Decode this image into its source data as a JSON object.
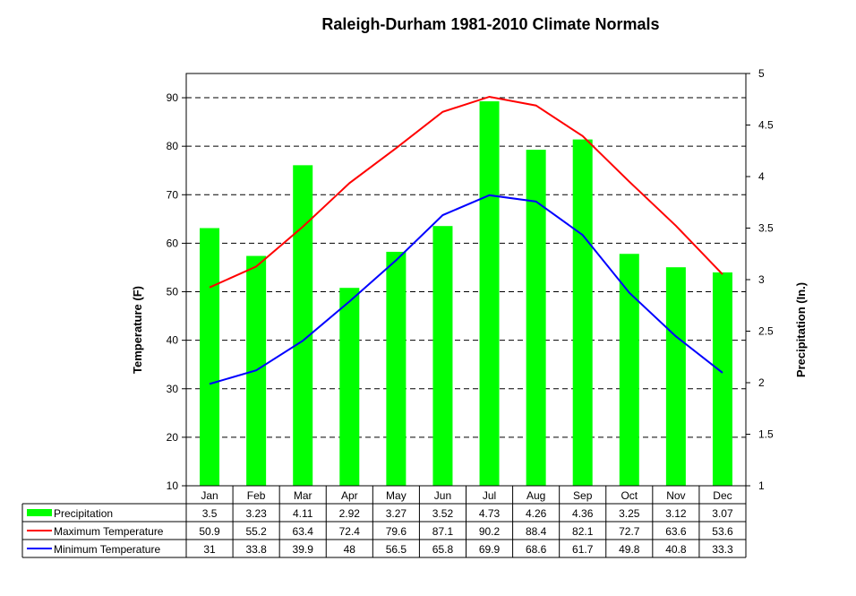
{
  "chart_data": {
    "type": "bar",
    "title": "Raleigh-Durham 1981-2010 Climate Normals",
    "categories": [
      "Jan",
      "Feb",
      "Mar",
      "Apr",
      "May",
      "Jun",
      "Jul",
      "Aug",
      "Sep",
      "Oct",
      "Nov",
      "Dec"
    ],
    "ylabel_left": "Temperature  (F)",
    "ylabel_right": "Precipitation  (In.)",
    "ylim_left": [
      10,
      95
    ],
    "ylim_right": [
      1,
      5
    ],
    "yticks_left": [
      "10",
      "20",
      "30",
      "40",
      "50",
      "60",
      "70",
      "80",
      "90"
    ],
    "yticks_right": [
      "1",
      "1.5",
      "2",
      "2.5",
      "3",
      "3.5",
      "4",
      "4.5",
      "5"
    ],
    "grid": "dashed horizontal at left-axis ticks",
    "series": [
      {
        "name": "Precipitation",
        "kind": "bar",
        "axis": "right",
        "color": "#00ff00",
        "values": [
          3.5,
          3.23,
          4.11,
          2.92,
          3.27,
          3.52,
          4.73,
          4.26,
          4.36,
          3.25,
          3.12,
          3.07
        ],
        "labels": [
          "3.5",
          "3.23",
          "4.11",
          "2.92",
          "3.27",
          "3.52",
          "4.73",
          "4.26",
          "4.36",
          "3.25",
          "3.12",
          "3.07"
        ]
      },
      {
        "name": "Maximum Temperature",
        "kind": "line",
        "axis": "left",
        "color": "#ff0000",
        "values": [
          50.9,
          55.2,
          63.4,
          72.4,
          79.6,
          87.1,
          90.2,
          88.4,
          82.1,
          72.7,
          63.6,
          53.6
        ],
        "labels": [
          "50.9",
          "55.2",
          "63.4",
          "72.4",
          "79.6",
          "87.1",
          "90.2",
          "88.4",
          "82.1",
          "72.7",
          "63.6",
          "53.6"
        ]
      },
      {
        "name": "Minimum Temperature",
        "kind": "line",
        "axis": "left",
        "color": "#0000ff",
        "values": [
          31,
          33.8,
          39.9,
          48,
          56.5,
          65.8,
          69.9,
          68.6,
          61.7,
          49.8,
          40.8,
          33.3
        ],
        "labels": [
          "31",
          "33.8",
          "39.9",
          "48",
          "56.5",
          "65.8",
          "69.9",
          "68.6",
          "61.7",
          "49.8",
          "40.8",
          "33.3"
        ]
      }
    ]
  }
}
